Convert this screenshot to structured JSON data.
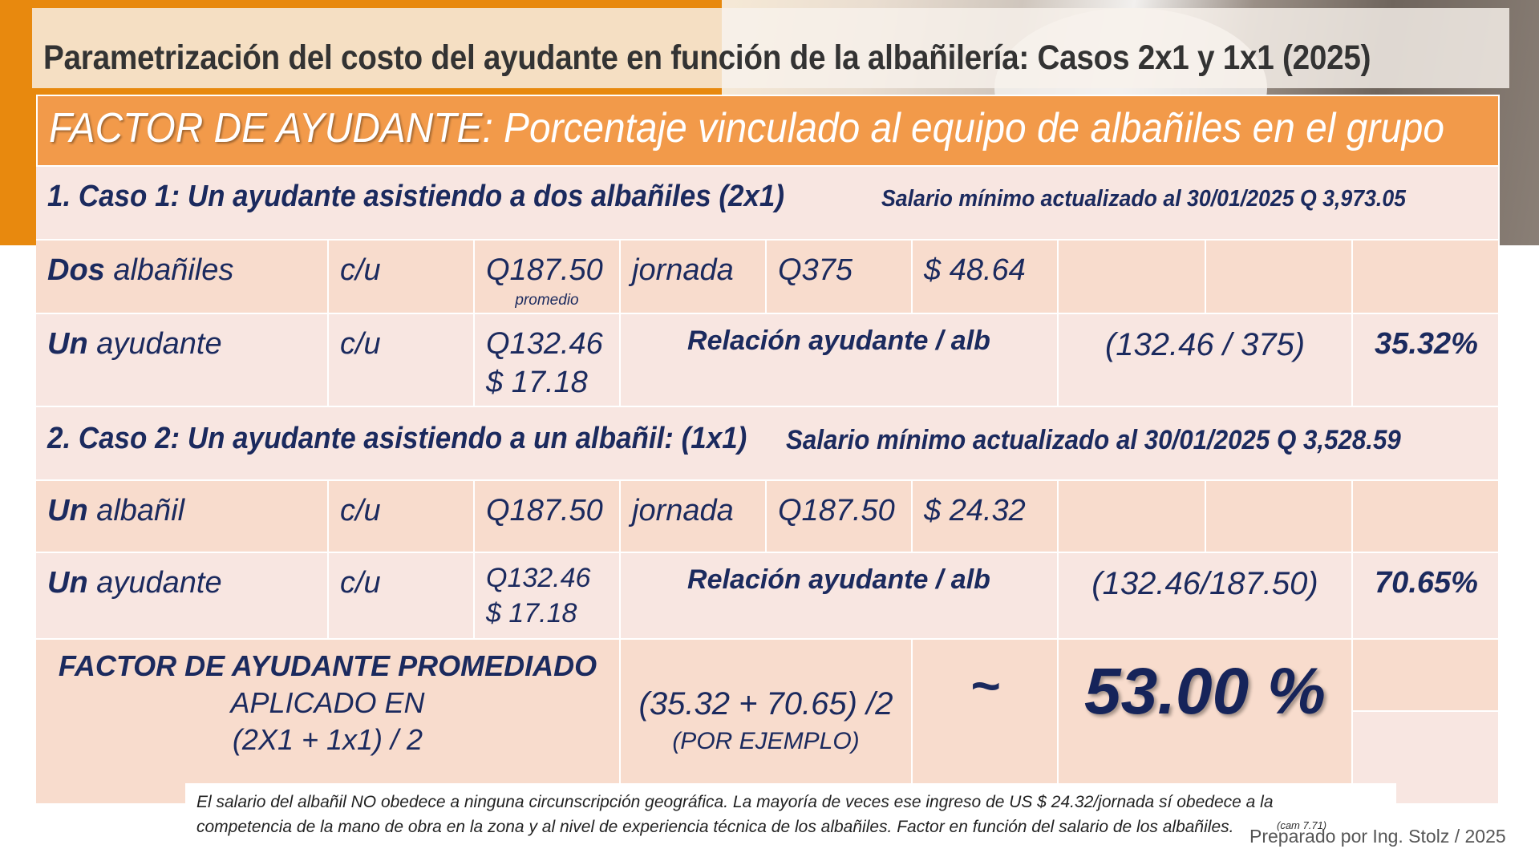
{
  "title": "Parametrización del costo del ayudante en función de la albañilería: Casos 2x1 y 1x1 (2025)",
  "header": {
    "lead": "FACTOR DE AYUDANTE",
    "rest": ": Porcentaje vinculado al equipo de albañiles en el grupo"
  },
  "case1": {
    "title": "1. Caso 1: Un ayudante asistiendo a dos albañiles (2x1)",
    "salary_note": "Salario mínimo actualizado al 30/01/2025 Q 3,973.05",
    "row1": {
      "bold": "Dos",
      "label": " albañiles",
      "unit": "c/u",
      "price": "Q187.50",
      "price_note": "promedio",
      "period": "jornada",
      "total": "Q375",
      "usd": "$ 48.64"
    },
    "row2": {
      "bold": "Un",
      "label": " ayudante",
      "unit": "c/u",
      "price": "Q132.46",
      "usd": "$  17.18",
      "relation_label": "Relación ayudante / alb",
      "formula": "(132.46 / 375)",
      "percent": "35.32%"
    }
  },
  "case2": {
    "title": "2. Caso 2: Un ayudante asistiendo a un albañil: (1x1)",
    "salary_note": "Salario mínimo actualizado al 30/01/2025 Q 3,528.59",
    "row1": {
      "bold": "Un",
      "label": " albañil",
      "unit": "c/u",
      "price": "Q187.50",
      "period": "jornada",
      "total": "Q187.50",
      "usd": "$ 24.32"
    },
    "row2": {
      "bold": "Un",
      "label": " ayudante",
      "unit": "c/u",
      "price": "Q132.46",
      "usd": "$  17.18",
      "relation_label": "Relación ayudante / alb",
      "formula": "(132.46/187.50)",
      "percent": "70.65%"
    }
  },
  "summary": {
    "line1": "FACTOR DE AYUDANTE PROMEDIADO",
    "line2": "APLICADO EN",
    "line3": "(2X1 + 1x1) / 2",
    "formula": "(35.32 + 70.65) /2",
    "formula_note": "(POR EJEMPLO)",
    "approx": "~",
    "result": "53.00 %"
  },
  "footnote": "El salario del albañil NO obedece a ninguna circunscripción geográfica. La mayoría de veces ese ingreso de US $ 24.32/jornada sí obedece a la competencia de la mano de obra en la zona y al nivel de experiencia técnica de los albañiles. Factor en función del salario de los albañiles.",
  "cam_note": "(cam 7.71)",
  "credit": "Preparado por Ing. Stolz / 2025"
}
